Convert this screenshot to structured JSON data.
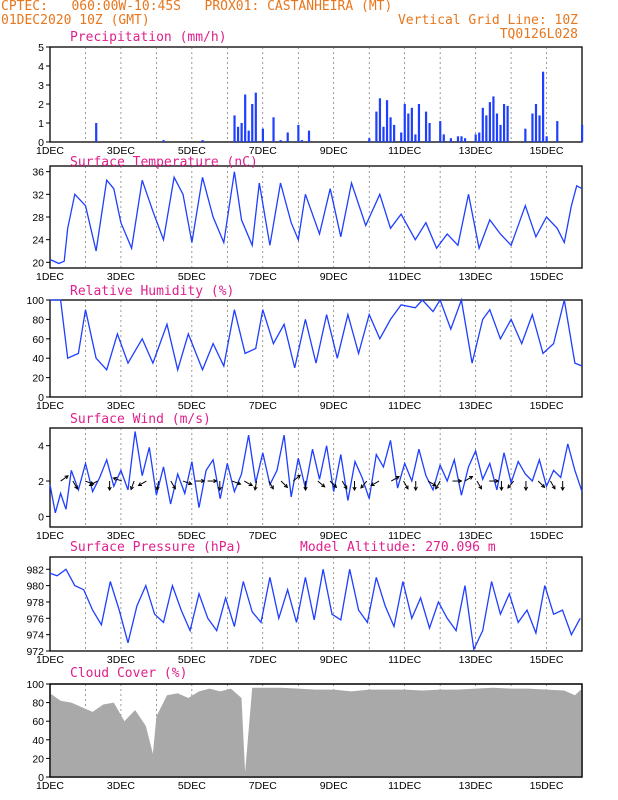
{
  "header": {
    "line1_left": "CPTEC:   060:00W-10:45S   PROX01: CASTANHEIRA (MT)",
    "line2_left": "01DEC2020 10Z (GMT)",
    "line2_right": "Vertical Grid Line: 10Z",
    "line3_right": "TQ0126L028"
  },
  "colors": {
    "header": "#e8761c",
    "title": "#e0208c",
    "series": "#1f3fff",
    "cloud": "#a9a9a9",
    "arrow": "#000000"
  },
  "chart_data": [
    {
      "id": "precip",
      "type": "bar",
      "title": "Precipitation (mm/h)",
      "ylim": [
        0,
        5
      ],
      "yticks": [
        0,
        1,
        2,
        3,
        4,
        5
      ],
      "xlim_days": [
        1,
        16
      ],
      "xticks": [
        "1DEC",
        "3DEC",
        "5DEC",
        "7DEC",
        "9DEC",
        "11DEC",
        "13DEC",
        "15DEC"
      ],
      "x_days": [
        2.3,
        4.2,
        5.3,
        6.2,
        6.3,
        6.4,
        6.5,
        6.6,
        6.7,
        6.8,
        7.0,
        7.3,
        7.5,
        7.7,
        8.0,
        8.1,
        8.3,
        10.0,
        10.2,
        10.3,
        10.4,
        10.5,
        10.6,
        10.7,
        10.9,
        11.0,
        11.1,
        11.2,
        11.3,
        11.4,
        11.6,
        11.7,
        12.0,
        12.1,
        12.3,
        12.5,
        12.6,
        12.7,
        13.0,
        13.1,
        13.2,
        13.3,
        13.4,
        13.5,
        13.6,
        13.7,
        13.8,
        13.9,
        14.4,
        14.6,
        14.7,
        14.8,
        14.9,
        15.0,
        15.3,
        16.0
      ],
      "values": [
        1.0,
        0.1,
        0.1,
        1.4,
        0.8,
        1.0,
        2.5,
        0.6,
        2.0,
        2.6,
        0.7,
        1.3,
        0.1,
        0.5,
        0.9,
        0.1,
        0.6,
        0.2,
        1.6,
        2.3,
        0.8,
        2.2,
        1.3,
        0.9,
        0.5,
        2.0,
        1.5,
        1.8,
        0.4,
        2.0,
        1.6,
        1.0,
        1.1,
        0.4,
        0.2,
        0.3,
        0.3,
        0.2,
        0.4,
        0.5,
        1.8,
        1.4,
        2.1,
        2.4,
        1.5,
        0.9,
        2.0,
        1.9,
        0.7,
        1.5,
        2.0,
        1.4,
        3.7,
        0.3,
        1.1,
        0.9
      ]
    },
    {
      "id": "temp",
      "type": "line",
      "title": "Surface Temperature (nC)",
      "ylim": [
        19,
        37
      ],
      "yticks": [
        20,
        24,
        28,
        32,
        36
      ],
      "xlim_days": [
        1,
        16
      ],
      "xticks": [
        "1DEC",
        "3DEC",
        "5DEC",
        "7DEC",
        "9DEC",
        "11DEC",
        "13DEC",
        "15DEC"
      ],
      "x_days": [
        1.0,
        1.25,
        1.4,
        1.5,
        1.7,
        2.0,
        2.3,
        2.6,
        2.8,
        3.0,
        3.3,
        3.6,
        3.9,
        4.2,
        4.5,
        4.75,
        5.0,
        5.3,
        5.6,
        5.9,
        6.2,
        6.4,
        6.7,
        6.9,
        7.2,
        7.5,
        7.8,
        8.0,
        8.2,
        8.6,
        8.9,
        9.2,
        9.5,
        9.9,
        10.3,
        10.6,
        10.9,
        11.3,
        11.6,
        11.9,
        12.2,
        12.5,
        12.8,
        13.1,
        13.4,
        13.7,
        14.0,
        14.4,
        14.7,
        15.0,
        15.3,
        15.5,
        15.7,
        15.85,
        16.0
      ],
      "values": [
        20.5,
        19.8,
        20.2,
        26,
        32,
        30,
        22,
        34.5,
        33,
        27,
        22.5,
        34.5,
        29,
        24,
        35,
        32,
        23.5,
        35,
        28,
        23.5,
        36,
        27.5,
        23,
        34,
        23,
        34,
        27,
        24,
        32,
        25,
        33,
        24.5,
        34,
        26.5,
        32,
        26,
        28.5,
        24,
        27,
        22.5,
        25,
        23,
        32,
        22.5,
        27.5,
        25,
        23,
        30,
        24.5,
        28,
        26,
        23.5,
        30,
        33.5,
        33
      ]
    },
    {
      "id": "rh",
      "type": "line",
      "title": "Relative Humidity (%)",
      "ylim": [
        0,
        100
      ],
      "yticks": [
        0,
        20,
        40,
        60,
        80,
        100
      ],
      "xlim_days": [
        1,
        16
      ],
      "xticks": [
        "1DEC",
        "3DEC",
        "5DEC",
        "7DEC",
        "9DEC",
        "11DEC",
        "13DEC",
        "15DEC"
      ],
      "x_days": [
        1.0,
        1.3,
        1.5,
        1.8,
        2.0,
        2.3,
        2.6,
        2.9,
        3.2,
        3.6,
        3.9,
        4.3,
        4.6,
        4.9,
        5.3,
        5.6,
        5.9,
        6.2,
        6.5,
        6.8,
        7.0,
        7.3,
        7.6,
        7.9,
        8.2,
        8.5,
        8.8,
        9.1,
        9.4,
        9.7,
        10.0,
        10.3,
        10.6,
        10.9,
        11.3,
        11.5,
        11.8,
        12.0,
        12.3,
        12.6,
        12.9,
        13.2,
        13.4,
        13.7,
        14.0,
        14.3,
        14.6,
        14.9,
        15.2,
        15.5,
        15.8,
        16.0
      ],
      "values": [
        100,
        100,
        40,
        45,
        90,
        40,
        28,
        65,
        35,
        60,
        35,
        75,
        28,
        65,
        28,
        55,
        32,
        90,
        45,
        50,
        90,
        55,
        75,
        30,
        80,
        35,
        85,
        40,
        85,
        45,
        85,
        60,
        80,
        95,
        92,
        100,
        88,
        100,
        70,
        100,
        35,
        80,
        90,
        60,
        80,
        55,
        85,
        45,
        55,
        100,
        35,
        32
      ]
    },
    {
      "id": "wind",
      "type": "line",
      "title": "Surface Wind (m/s)",
      "ylim": [
        -0.6,
        5
      ],
      "yticks": [
        0,
        2,
        4
      ],
      "xlim_days": [
        1,
        16
      ],
      "xticks": [
        "1DEC",
        "3DEC",
        "5DEC",
        "7DEC",
        "9DEC",
        "11DEC",
        "13DEC",
        "15DEC"
      ],
      "x_days": [
        1.0,
        1.15,
        1.3,
        1.45,
        1.6,
        1.8,
        2.0,
        2.2,
        2.4,
        2.6,
        2.8,
        3.0,
        3.2,
        3.4,
        3.6,
        3.8,
        4.0,
        4.2,
        4.4,
        4.6,
        4.8,
        5.0,
        5.2,
        5.4,
        5.6,
        5.8,
        6.0,
        6.2,
        6.4,
        6.6,
        6.8,
        7.0,
        7.2,
        7.4,
        7.6,
        7.8,
        8.0,
        8.2,
        8.4,
        8.6,
        8.8,
        9.0,
        9.2,
        9.4,
        9.6,
        9.8,
        10.0,
        10.2,
        10.4,
        10.6,
        10.8,
        11.0,
        11.2,
        11.4,
        11.6,
        11.8,
        12.0,
        12.2,
        12.4,
        12.6,
        12.8,
        13.0,
        13.2,
        13.4,
        13.6,
        13.8,
        14.0,
        14.2,
        14.4,
        14.6,
        14.8,
        15.0,
        15.2,
        15.4,
        15.6,
        15.8,
        16.0
      ],
      "values": [
        1.8,
        0.2,
        1.3,
        0.4,
        2.6,
        1.5,
        3.0,
        1.4,
        2.2,
        3.2,
        1.7,
        2.6,
        1.5,
        4.8,
        2.3,
        3.9,
        1.2,
        2.8,
        0.7,
        2.4,
        1.3,
        3.1,
        0.5,
        2.6,
        3.2,
        1.0,
        3.0,
        1.4,
        2.4,
        4.6,
        1.9,
        3.6,
        1.8,
        2.6,
        4.6,
        1.1,
        3.3,
        1.6,
        3.8,
        2.1,
        4.0,
        1.4,
        3.5,
        0.9,
        3.1,
        2.2,
        1.0,
        3.5,
        2.8,
        4.3,
        1.6,
        3.0,
        2.0,
        3.8,
        2.3,
        1.5,
        2.9,
        2.0,
        3.2,
        1.2,
        2.8,
        3.7,
        2.1,
        3.0,
        1.5,
        3.6,
        1.9,
        3.1,
        2.4,
        2.0,
        3.2,
        1.7,
        2.6,
        2.2,
        4.1,
        2.6,
        1.4
      ]
    },
    {
      "id": "pressure",
      "type": "line",
      "title": "Surface Pressure (hPa)",
      "annotation": "Model Altitude: 270.096  m",
      "ylim": [
        972,
        983.5
      ],
      "yticks": [
        972,
        974,
        976,
        978,
        980,
        982
      ],
      "xlim_days": [
        1,
        16
      ],
      "xticks": [
        "1DEC",
        "3DEC",
        "5DEC",
        "7DEC",
        "9DEC",
        "11DEC",
        "13DEC",
        "15DEC"
      ],
      "x_days": [
        1.0,
        1.2,
        1.45,
        1.7,
        1.95,
        2.2,
        2.45,
        2.7,
        2.95,
        3.2,
        3.45,
        3.7,
        3.95,
        4.2,
        4.45,
        4.7,
        4.95,
        5.2,
        5.45,
        5.7,
        5.95,
        6.2,
        6.45,
        6.7,
        6.95,
        7.2,
        7.45,
        7.7,
        7.95,
        8.2,
        8.45,
        8.7,
        8.95,
        9.2,
        9.45,
        9.7,
        9.95,
        10.2,
        10.45,
        10.7,
        10.95,
        11.2,
        11.45,
        11.7,
        11.95,
        12.2,
        12.45,
        12.7,
        12.95,
        13.2,
        13.45,
        13.7,
        13.95,
        14.2,
        14.45,
        14.7,
        14.95,
        15.2,
        15.45,
        15.7,
        15.95
      ],
      "values": [
        981.5,
        981.2,
        982,
        980,
        979.5,
        977,
        975.2,
        980.5,
        977,
        973,
        977.5,
        980,
        976.5,
        975.5,
        980,
        977,
        974.5,
        979,
        976,
        974.5,
        978.5,
        975,
        980.5,
        976.8,
        975.5,
        981,
        976,
        979.5,
        975.5,
        981,
        975.8,
        982,
        976.5,
        975.8,
        982,
        977,
        975.5,
        981,
        977.5,
        975,
        980.5,
        976,
        978.5,
        974.8,
        978,
        976,
        974.5,
        980,
        972.2,
        974.5,
        980.5,
        976.5,
        979,
        975.5,
        977,
        974.2,
        980,
        976.5,
        977,
        974,
        976
      ]
    },
    {
      "id": "cloud",
      "type": "bar",
      "title": "Cloud Cover (%)",
      "ylim": [
        0,
        100
      ],
      "yticks": [
        0,
        20,
        40,
        60,
        80,
        100
      ],
      "xlim_days": [
        1,
        16
      ],
      "xticks": [
        "1DEC",
        "3DEC",
        "5DEC",
        "7DEC",
        "9DEC",
        "11DEC",
        "13DEC",
        "15DEC"
      ],
      "x_days": [
        1.0,
        1.3,
        1.6,
        1.9,
        2.2,
        2.5,
        2.8,
        3.1,
        3.4,
        3.7,
        3.9,
        4.0,
        4.3,
        4.6,
        4.9,
        5.2,
        5.5,
        5.8,
        6.1,
        6.4,
        6.5,
        6.7,
        7.0,
        7.5,
        8.0,
        8.5,
        9.0,
        9.5,
        10.0,
        10.5,
        11.0,
        11.5,
        12.0,
        12.5,
        13.0,
        13.5,
        14.0,
        14.5,
        15.0,
        15.5,
        15.8,
        16.0
      ],
      "values": [
        90,
        82,
        80,
        75,
        70,
        78,
        80,
        60,
        72,
        55,
        25,
        65,
        88,
        90,
        85,
        92,
        95,
        92,
        95,
        85,
        5,
        96,
        96,
        96,
        95,
        94,
        94,
        92,
        94,
        94,
        94,
        93,
        94,
        94,
        95,
        96,
        95,
        95,
        94,
        93,
        88,
        95
      ]
    }
  ]
}
